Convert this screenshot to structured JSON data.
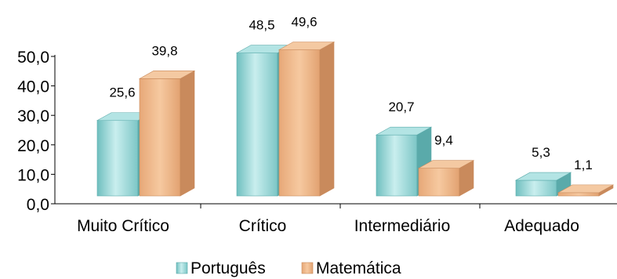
{
  "chart_data": {
    "type": "bar",
    "title": "",
    "xlabel": "",
    "ylabel": "",
    "categories": [
      "Muito Crítico",
      "Crítico",
      "Intermediário",
      "Adequado"
    ],
    "series": [
      {
        "name": "Português",
        "values": [
          25.6,
          48.5,
          20.7,
          5.3
        ],
        "value_labels": [
          "25,6",
          "48,5",
          "20,7",
          "5,3"
        ],
        "color": "#8fd3d3"
      },
      {
        "name": "Matemática",
        "values": [
          39.8,
          49.6,
          9.4,
          1.1
        ],
        "value_labels": [
          "39,8",
          "49,6",
          "9,4",
          "1,1"
        ],
        "color": "#f0b88a"
      }
    ],
    "ylim": [
      0,
      50
    ],
    "yticks": [
      0,
      10,
      20,
      30,
      40,
      50
    ],
    "ytick_labels": [
      "0,0",
      "10,0",
      "20,0",
      "30,0",
      "40,0",
      "50,0"
    ],
    "grid": false,
    "style": "3d-bar",
    "legend": {
      "position": "bottom",
      "entries": [
        "Português",
        "Matemática"
      ]
    }
  }
}
